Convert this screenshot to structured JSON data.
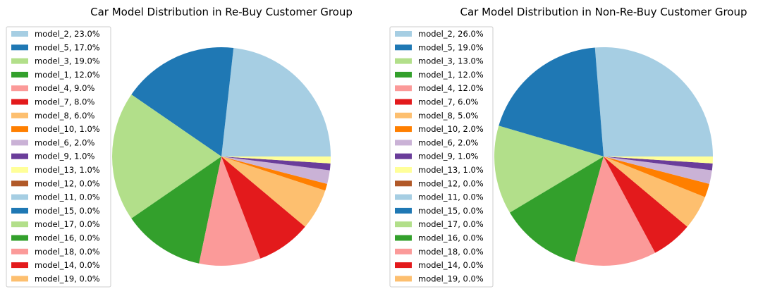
{
  "chart_data": [
    {
      "type": "pie",
      "title": "Car Model Distribution in Re-Buy Customer Group",
      "legend_position": "upper-left",
      "start_angle": "0 degrees (3 o'clock), counter-clockwise",
      "slices": [
        {
          "label": "model_2",
          "pct_label": "23.0%",
          "value": 23.0,
          "color": "#a6cee3"
        },
        {
          "label": "model_5",
          "pct_label": "17.0%",
          "value": 17.0,
          "color": "#1f78b4"
        },
        {
          "label": "model_3",
          "pct_label": "19.0%",
          "value": 19.0,
          "color": "#b2df8a"
        },
        {
          "label": "model_1",
          "pct_label": "12.0%",
          "value": 12.0,
          "color": "#33a02c"
        },
        {
          "label": "model_4",
          "pct_label": "9.0%",
          "value": 9.0,
          "color": "#fb9a99"
        },
        {
          "label": "model_7",
          "pct_label": "8.0%",
          "value": 8.0,
          "color": "#e31a1c"
        },
        {
          "label": "model_8",
          "pct_label": "6.0%",
          "value": 6.0,
          "color": "#fdbf6f"
        },
        {
          "label": "model_10",
          "pct_label": "1.0%",
          "value": 1.0,
          "color": "#ff7f00"
        },
        {
          "label": "model_6",
          "pct_label": "2.0%",
          "value": 2.0,
          "color": "#cab2d6"
        },
        {
          "label": "model_9",
          "pct_label": "1.0%",
          "value": 1.0,
          "color": "#6a3d9a"
        },
        {
          "label": "model_13",
          "pct_label": "1.0%",
          "value": 1.0,
          "color": "#ffff99"
        },
        {
          "label": "model_12",
          "pct_label": "0.0%",
          "value": 0.0,
          "color": "#b15928"
        },
        {
          "label": "model_11",
          "pct_label": "0.0%",
          "value": 0.0,
          "color": "#a6cee3"
        },
        {
          "label": "model_15",
          "pct_label": "0.0%",
          "value": 0.0,
          "color": "#1f78b4"
        },
        {
          "label": "model_17",
          "pct_label": "0.0%",
          "value": 0.0,
          "color": "#b2df8a"
        },
        {
          "label": "model_16",
          "pct_label": "0.0%",
          "value": 0.0,
          "color": "#33a02c"
        },
        {
          "label": "model_18",
          "pct_label": "0.0%",
          "value": 0.0,
          "color": "#fb9a99"
        },
        {
          "label": "model_14",
          "pct_label": "0.0%",
          "value": 0.0,
          "color": "#e31a1c"
        },
        {
          "label": "model_19",
          "pct_label": "0.0%",
          "value": 0.0,
          "color": "#fdbf6f"
        }
      ]
    },
    {
      "type": "pie",
      "title": "Car Model Distribution in Non-Re-Buy Customer Group",
      "legend_position": "upper-left",
      "start_angle": "0 degrees (3 o'clock), counter-clockwise",
      "slices": [
        {
          "label": "model_2",
          "pct_label": "26.0%",
          "value": 26.0,
          "color": "#a6cee3"
        },
        {
          "label": "model_5",
          "pct_label": "19.0%",
          "value": 19.0,
          "color": "#1f78b4"
        },
        {
          "label": "model_3",
          "pct_label": "13.0%",
          "value": 13.0,
          "color": "#b2df8a"
        },
        {
          "label": "model_1",
          "pct_label": "12.0%",
          "value": 12.0,
          "color": "#33a02c"
        },
        {
          "label": "model_4",
          "pct_label": "12.0%",
          "value": 12.0,
          "color": "#fb9a99"
        },
        {
          "label": "model_7",
          "pct_label": "6.0%",
          "value": 6.0,
          "color": "#e31a1c"
        },
        {
          "label": "model_8",
          "pct_label": "5.0%",
          "value": 5.0,
          "color": "#fdbf6f"
        },
        {
          "label": "model_10",
          "pct_label": "2.0%",
          "value": 2.0,
          "color": "#ff7f00"
        },
        {
          "label": "model_6",
          "pct_label": "2.0%",
          "value": 2.0,
          "color": "#cab2d6"
        },
        {
          "label": "model_9",
          "pct_label": "1.0%",
          "value": 1.0,
          "color": "#6a3d9a"
        },
        {
          "label": "model_13",
          "pct_label": "1.0%",
          "value": 1.0,
          "color": "#ffff99"
        },
        {
          "label": "model_12",
          "pct_label": "0.0%",
          "value": 0.0,
          "color": "#b15928"
        },
        {
          "label": "model_11",
          "pct_label": "0.0%",
          "value": 0.0,
          "color": "#a6cee3"
        },
        {
          "label": "model_15",
          "pct_label": "0.0%",
          "value": 0.0,
          "color": "#1f78b4"
        },
        {
          "label": "model_17",
          "pct_label": "0.0%",
          "value": 0.0,
          "color": "#b2df8a"
        },
        {
          "label": "model_16",
          "pct_label": "0.0%",
          "value": 0.0,
          "color": "#33a02c"
        },
        {
          "label": "model_18",
          "pct_label": "0.0%",
          "value": 0.0,
          "color": "#fb9a99"
        },
        {
          "label": "model_14",
          "pct_label": "0.0%",
          "value": 0.0,
          "color": "#e31a1c"
        },
        {
          "label": "model_19",
          "pct_label": "0.0%",
          "value": 0.0,
          "color": "#fdbf6f"
        }
      ]
    }
  ]
}
